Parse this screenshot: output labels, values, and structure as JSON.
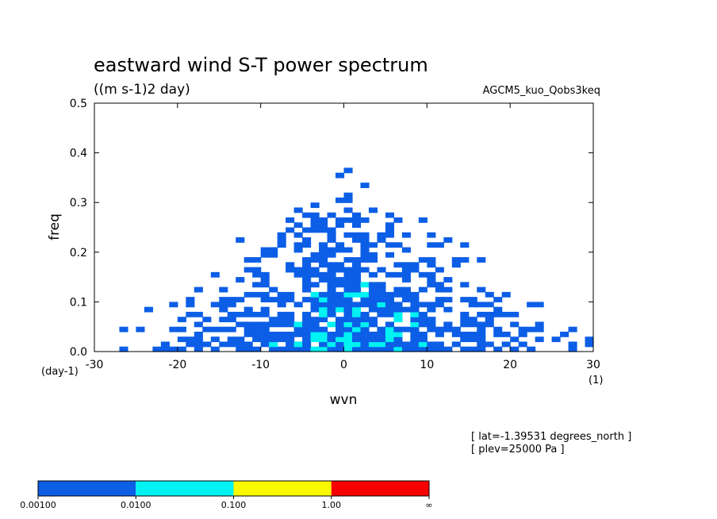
{
  "chart_data": {
    "type": "heatmap",
    "title": "eastward wind S-T power spectrum",
    "units": "((m s-1)2 day)",
    "dataset": "AGCM5_kuo_Qobs3keq",
    "xlabel": "wvn",
    "ylabel": "freq",
    "x_unit": "(1)",
    "y_unit": "(day-1)",
    "xlim": [
      -30,
      30
    ],
    "ylim": [
      0.0,
      0.5
    ],
    "x_ticks": [
      "-30",
      "-20",
      "-10",
      "0",
      "10",
      "20",
      "30"
    ],
    "y_ticks": [
      "0.0",
      "0.1",
      "0.2",
      "0.3",
      "0.4",
      "0.5"
    ],
    "info_lines": [
      "[ lat=-1.39531 degrees_north ]",
      "[ plev=25000 Pa ]"
    ],
    "colorbar": {
      "levels": [
        "0.00100",
        "0.0100",
        "0.100",
        "1.00",
        "∞"
      ],
      "colors": [
        "#0c5ee6",
        "#00f2f2",
        "#f9f900",
        "#f70000"
      ]
    },
    "features": {
      "peak_near": {
        "wvn": 1,
        "freq": 0.05
      },
      "notes": "power largest at low frequency near wavenumber 0; decreases outward and upward"
    }
  }
}
